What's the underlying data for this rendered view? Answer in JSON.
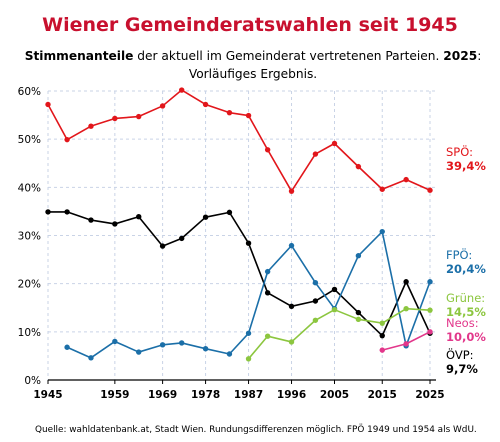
{
  "chart_data": {
    "type": "line",
    "title": "Wiener Gemeinderatswahlen seit 1945",
    "subtitle_bold": "Stimmenanteile",
    "subtitle_rest": " der aktuell im Gemeinderat vertretenen Parteien. ",
    "subtitle_year": "2025",
    "subtitle_colon": ":",
    "subtitle_line2": "Vorläufiges Ergebnis.",
    "source": "Quelle: wahldatenbank.at, Stadt Wien. Rundungsdifferenzen möglich. FPÖ 1949 und 1954 als WdU.",
    "x_ticks": [
      "1945",
      "1959",
      "1969",
      "1978",
      "1987",
      "1996",
      "2005",
      "2015",
      "2025"
    ],
    "xlim": [
      1945,
      2025
    ],
    "y_ticks": [
      "0%",
      "10%",
      "20%",
      "30%",
      "40%",
      "50%",
      "60%"
    ],
    "ylim": [
      0,
      60
    ],
    "grid": true,
    "colors": {
      "title": "#c8102e",
      "spo": "#e2161b",
      "ovp": "#000000",
      "fpo": "#1b6fa8",
      "grune": "#8cc63f",
      "neos": "#e2378b",
      "grid": "#c9d3e6",
      "axis": "#000000"
    },
    "series": [
      {
        "key": "spo",
        "name": "SPÖ:",
        "value_label": "39,4%",
        "points": [
          [
            1945,
            57.2
          ],
          [
            1949,
            49.9
          ],
          [
            1954,
            52.7
          ],
          [
            1959,
            54.3
          ],
          [
            1964,
            54.7
          ],
          [
            1969,
            56.9
          ],
          [
            1973,
            60.2
          ],
          [
            1978,
            57.2
          ],
          [
            1983,
            55.5
          ],
          [
            1987,
            54.9
          ],
          [
            1991,
            47.8
          ],
          [
            1996,
            39.2
          ],
          [
            2001,
            46.9
          ],
          [
            2005,
            49.1
          ],
          [
            2010,
            44.3
          ],
          [
            2015,
            39.6
          ],
          [
            2020,
            41.6
          ],
          [
            2025,
            39.4
          ]
        ]
      },
      {
        "key": "ovp",
        "name": "ÖVP:",
        "value_label": "9,7%",
        "points": [
          [
            1945,
            34.9
          ],
          [
            1949,
            34.9
          ],
          [
            1954,
            33.2
          ],
          [
            1959,
            32.4
          ],
          [
            1964,
            33.9
          ],
          [
            1969,
            27.8
          ],
          [
            1973,
            29.4
          ],
          [
            1978,
            33.8
          ],
          [
            1983,
            34.8
          ],
          [
            1987,
            28.4
          ],
          [
            1991,
            18.1
          ],
          [
            1996,
            15.3
          ],
          [
            2001,
            16.4
          ],
          [
            2005,
            18.8
          ],
          [
            2010,
            14.0
          ],
          [
            2015,
            9.2
          ],
          [
            2020,
            20.4
          ],
          [
            2025,
            9.7
          ]
        ]
      },
      {
        "key": "fpo",
        "name": "FPÖ:",
        "value_label": "20,4%",
        "points": [
          [
            1949,
            6.8
          ],
          [
            1954,
            4.6
          ],
          [
            1959,
            8.0
          ],
          [
            1964,
            5.8
          ],
          [
            1969,
            7.3
          ],
          [
            1973,
            7.7
          ],
          [
            1978,
            6.5
          ],
          [
            1983,
            5.4
          ],
          [
            1987,
            9.7
          ],
          [
            1991,
            22.5
          ],
          [
            1996,
            27.9
          ],
          [
            2001,
            20.2
          ],
          [
            2005,
            14.8
          ],
          [
            2010,
            25.8
          ],
          [
            2015,
            30.8
          ],
          [
            2020,
            7.1
          ],
          [
            2025,
            20.4
          ]
        ]
      },
      {
        "key": "grune",
        "name": "Grüne:",
        "value_label": "14,5%",
        "points": [
          [
            1987,
            4.4
          ],
          [
            1991,
            9.1
          ],
          [
            1996,
            7.9
          ],
          [
            2001,
            12.4
          ],
          [
            2005,
            14.6
          ],
          [
            2010,
            12.6
          ],
          [
            2015,
            11.8
          ],
          [
            2020,
            14.8
          ],
          [
            2025,
            14.5
          ]
        ]
      },
      {
        "key": "neos",
        "name": "Neos:",
        "value_label": "10,0%",
        "points": [
          [
            2015,
            6.2
          ],
          [
            2020,
            7.5
          ],
          [
            2025,
            10.0
          ]
        ]
      }
    ]
  }
}
